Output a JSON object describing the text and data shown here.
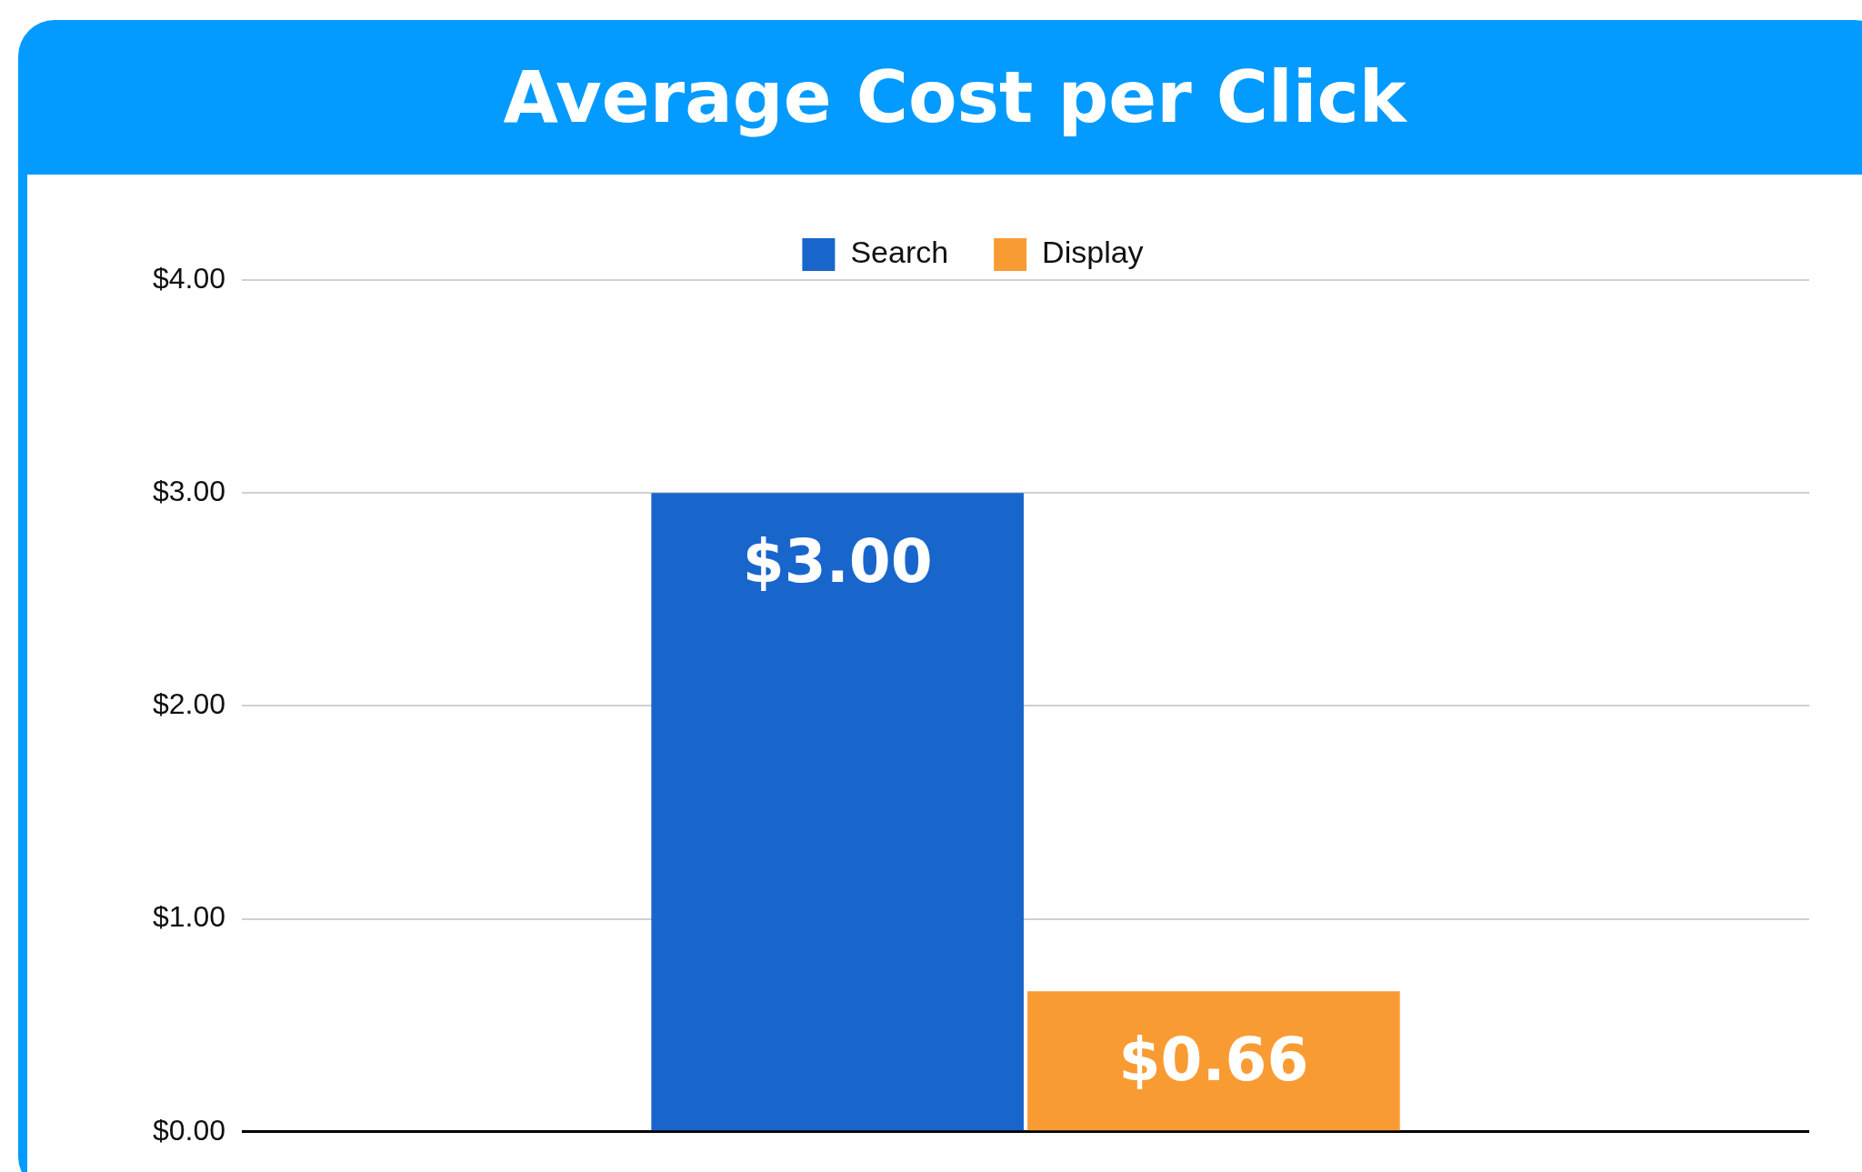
{
  "chart_data": {
    "type": "bar",
    "title": "Average Cost per Click",
    "categories": [
      null
    ],
    "series": [
      {
        "name": "Search",
        "color": "#1866cc",
        "values": [
          3.0
        ],
        "value_labels": [
          "$3.00"
        ]
      },
      {
        "name": "Display",
        "color": "#f99b33",
        "values": [
          0.66
        ],
        "value_labels": [
          "$0.66"
        ]
      }
    ],
    "ylim": [
      0,
      4
    ],
    "yticks": [
      {
        "value": 0,
        "label": "$0.00"
      },
      {
        "value": 1,
        "label": "$1.00"
      },
      {
        "value": 2,
        "label": "$2.00"
      },
      {
        "value": 3,
        "label": "$3.00"
      },
      {
        "value": 4,
        "label": "$4.00"
      }
    ],
    "grid": "y",
    "legend": "top"
  }
}
